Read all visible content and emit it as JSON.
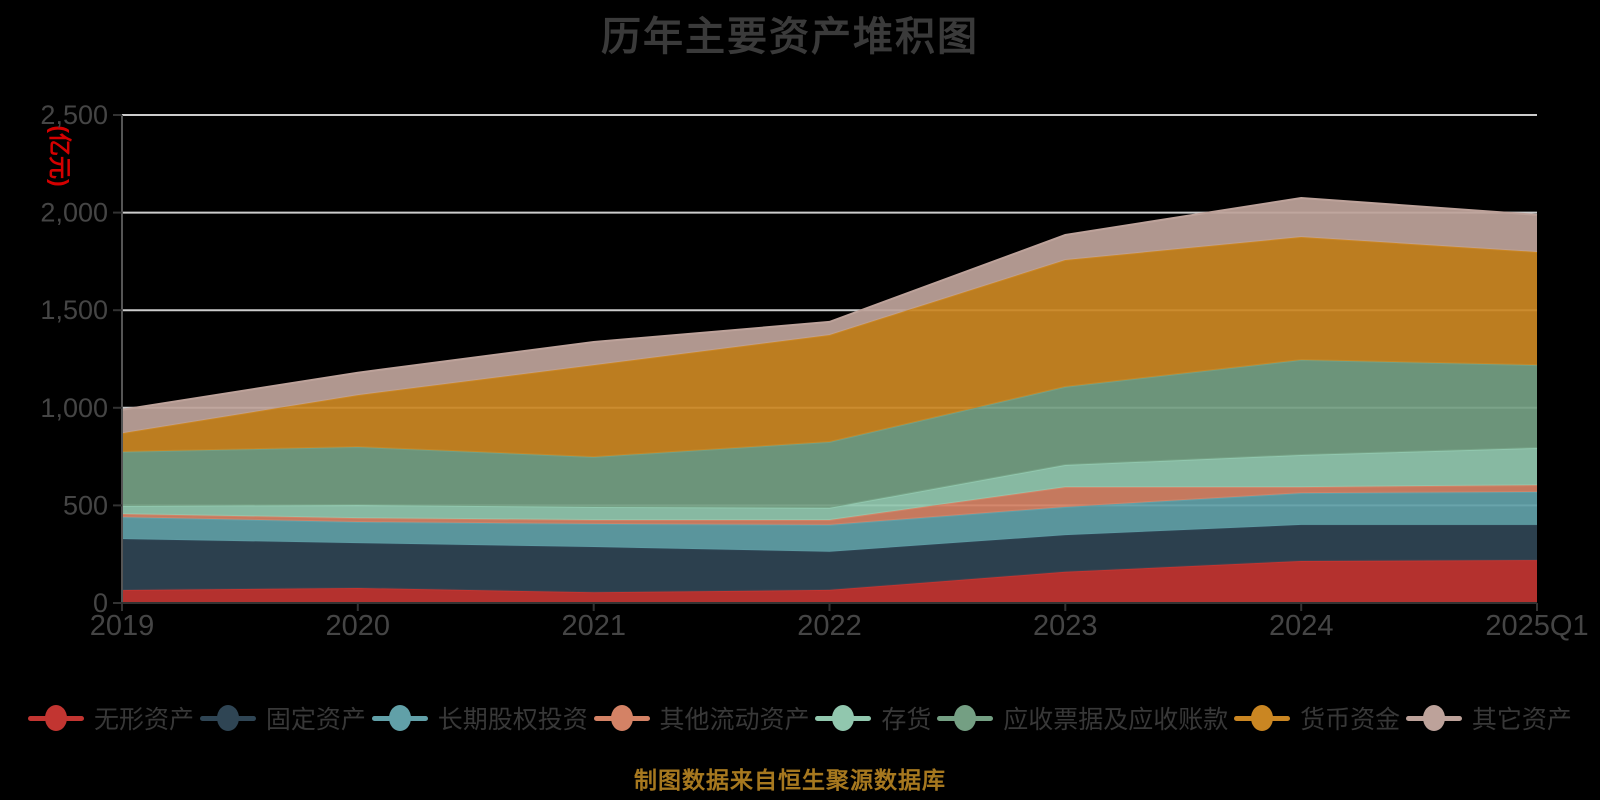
{
  "title": "历年主要资产堆积图",
  "y_axis_unit": "(亿元)",
  "footer": "制图数据来自恒生聚源数据库",
  "palette": {
    "grid_line": "#cccccc",
    "x_axis_line": "#333333",
    "y_axis_line": "#555555",
    "tick_mark": "#333333",
    "axis_label": "#454545",
    "title_text": "#3a3a3a",
    "unit_text": "#d40000",
    "footer_text": "#a6781f",
    "background": "#000000"
  },
  "chart_data": {
    "type": "area",
    "stacked": true,
    "title": "历年主要资产堆积图",
    "ylabel_unit": "(亿元)",
    "grid": true,
    "legend_position": "bottom",
    "ylim": [
      0,
      2500
    ],
    "y_tick_values": [
      0,
      500,
      1000,
      1500,
      2000,
      2500
    ],
    "y_tick_labels": [
      "0",
      "500",
      "1,000",
      "1,500",
      "2,000",
      "2,500"
    ],
    "categories": [
      "2019",
      "2020",
      "2021",
      "2022",
      "2023",
      "2024",
      "2025Q1"
    ],
    "series": [
      {
        "name": "无形资产",
        "color": "#c23531",
        "values": [
          66,
          77,
          55,
          67,
          160,
          215,
          220
        ]
      },
      {
        "name": "固定资产",
        "color": "#2f4554",
        "values": [
          262,
          230,
          232,
          196,
          188,
          185,
          180
        ]
      },
      {
        "name": "长期股权投资",
        "color": "#61a0a8",
        "values": [
          112,
          108,
          118,
          137,
          144,
          163,
          169
        ]
      },
      {
        "name": "其他流动资产",
        "color": "#d48265",
        "values": [
          16,
          20,
          20,
          25,
          102,
          31,
          35
        ]
      },
      {
        "name": "存货",
        "color": "#91c7ae",
        "values": [
          41,
          67,
          67,
          62,
          113,
          164,
          190
        ]
      },
      {
        "name": "应收票据及应收账款",
        "color": "#749f83",
        "values": [
          277,
          297,
          256,
          338,
          400,
          487,
          425
        ]
      },
      {
        "name": "货币资金",
        "color": "#ca8622",
        "values": [
          96,
          266,
          471,
          548,
          650,
          630,
          579
        ]
      },
      {
        "name": "其它资产",
        "color": "#bda29a",
        "values": [
          120,
          115,
          118,
          67,
          128,
          200,
          190
        ]
      }
    ],
    "stacked_totals": [
      990,
      1180,
      1337,
      1440,
      1885,
      2075,
      1988
    ]
  }
}
